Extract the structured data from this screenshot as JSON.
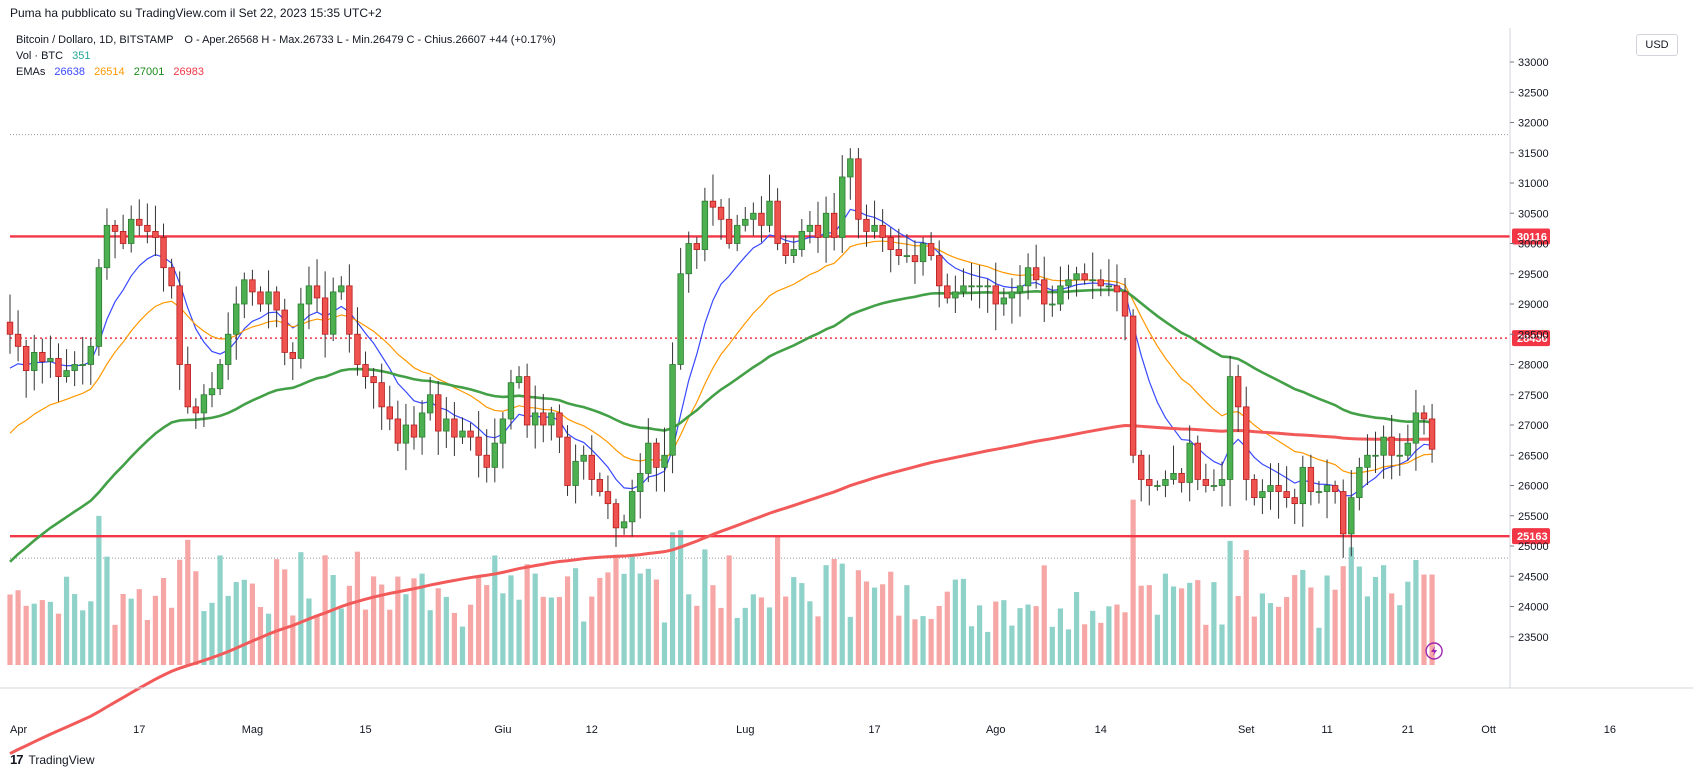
{
  "header": {
    "published": "Puma ha pubblicato su TradingView.com il Set 22, 2023 15:35 UTC+2"
  },
  "legend": {
    "symbol": "Bitcoin / Dollaro, 1D, BITSTAMP",
    "ohlc": "O - Aper.26568  H - Max.26733  L - Min.26479  C - Chius.26607  +44 (+0.17%)",
    "vol_label": "Vol · BTC",
    "vol_value": "351",
    "emas_label": "EMAs",
    "ema_values": [
      "26638",
      "26514",
      "27001",
      "26983"
    ]
  },
  "currency_button": "USD",
  "footer": {
    "brand": "TradingView"
  },
  "colors": {
    "up": "#26a69a",
    "down": "#ef5350",
    "up_candle": "#4caf50",
    "ema_fast": "#3949ff",
    "ema_mid": "#ff9800",
    "ema_slow": "#43a047",
    "ema_200": "#f44336",
    "level_line": "#f23645"
  },
  "chart_data": {
    "type": "candlestick",
    "y_ticks": [
      "33000",
      "32500",
      "32000",
      "31500",
      "31000",
      "30500",
      "30000",
      "29500",
      "29000",
      "28500",
      "28000",
      "27500",
      "27000",
      "26500",
      "26000",
      "25500",
      "25000",
      "24500",
      "24000",
      "23500"
    ],
    "ylim": [
      23000,
      33100
    ],
    "x_ticks": [
      {
        "label": "Apr",
        "day": 0
      },
      {
        "label": "17",
        "day": 16
      },
      {
        "label": "Mag",
        "day": 30
      },
      {
        "label": "15",
        "day": 44
      },
      {
        "label": "Giu",
        "day": 61
      },
      {
        "label": "12",
        "day": 72
      },
      {
        "label": "Lug",
        "day": 91
      },
      {
        "label": "17",
        "day": 107
      },
      {
        "label": "Ago",
        "day": 122
      },
      {
        "label": "14",
        "day": 135
      },
      {
        "label": "Set",
        "day": 153
      },
      {
        "label": "11",
        "day": 163
      },
      {
        "label": "21",
        "day": 173
      },
      {
        "label": "Ott",
        "day": 183
      },
      {
        "label": "16",
        "day": 198
      }
    ],
    "horizontal_levels": [
      {
        "price": 30116,
        "label": "30116",
        "style": "solid"
      },
      {
        "price": 28436,
        "label": "28436",
        "style": "dotted"
      },
      {
        "price": 25163,
        "label": "25163",
        "style": "solid"
      }
    ],
    "range_lines": [
      31800,
      24800
    ],
    "closes": [
      28500,
      28300,
      27900,
      28200,
      28050,
      28100,
      27800,
      27900,
      28000,
      28000,
      28300,
      29600,
      30300,
      30200,
      30000,
      30400,
      30300,
      30200,
      30100,
      29600,
      29300,
      28000,
      27300,
      27200,
      27500,
      27600,
      28000,
      28500,
      29000,
      29400,
      29200,
      29000,
      29200,
      28900,
      28200,
      28100,
      29000,
      29300,
      29100,
      28500,
      29200,
      29300,
      28500,
      28000,
      27800,
      27700,
      27300,
      27100,
      26700,
      27000,
      26800,
      27200,
      27500,
      26900,
      27100,
      26800,
      26900,
      26800,
      26500,
      26300,
      26700,
      27100,
      27700,
      27800,
      27000,
      27200,
      27000,
      27200,
      26800,
      26000,
      26400,
      26500,
      26100,
      25900,
      25700,
      25300,
      25400,
      25900,
      26200,
      26700,
      26300,
      26500,
      28000,
      29500,
      30000,
      29900,
      30700,
      30600,
      30400,
      30000,
      30300,
      30400,
      30500,
      30300,
      30700,
      30000,
      29800,
      29900,
      30200,
      30300,
      30100,
      30500,
      30100,
      31100,
      31400,
      30400,
      30200,
      30300,
      30100,
      29900,
      29800,
      29800,
      29700,
      30000,
      29800,
      29300,
      29100,
      29200,
      29300,
      29300,
      29300,
      29300,
      29000,
      29100,
      29200,
      29300,
      29600,
      29400,
      29000,
      29000,
      29300,
      29400,
      29500,
      29400,
      29400,
      29300,
      29300,
      29200,
      28800,
      26500,
      26100,
      26000,
      26000,
      26100,
      26200,
      26050,
      26700,
      26100,
      26000,
      26000,
      26100,
      27800,
      27300,
      26100,
      25800,
      25900,
      26000,
      25900,
      25800,
      25700,
      26300,
      25900,
      25900,
      26000,
      25900,
      25200,
      25800,
      26300,
      26500,
      26500,
      26800,
      26500,
      26500,
      26700,
      27200,
      27100,
      26600
    ]
  }
}
